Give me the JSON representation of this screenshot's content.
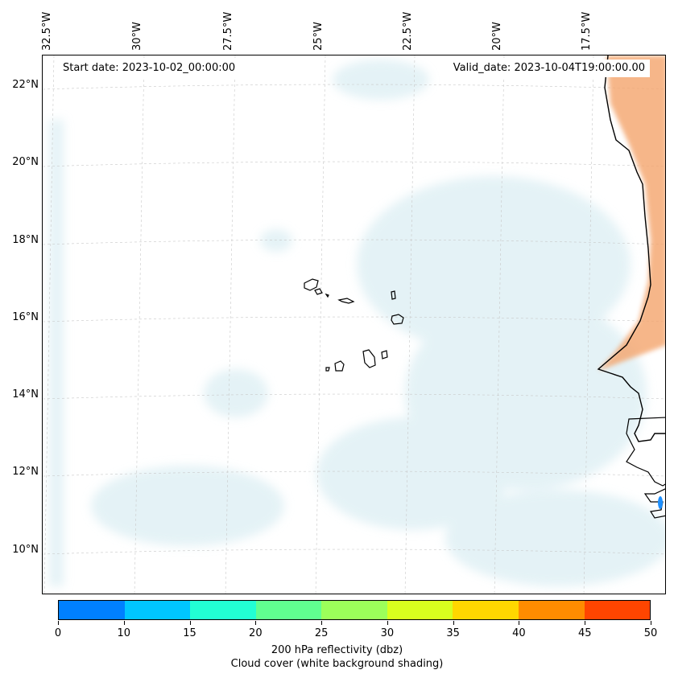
{
  "map": {
    "start_date": "Start date: 2023-10-02_00:00:00",
    "valid_date": "Valid_date: 2023-10-04T19:00:00.00",
    "lon_labels": [
      "32.5°W",
      "30°W",
      "27.5°W",
      "25°W",
      "22.5°W",
      "20°W",
      "17.5°W"
    ],
    "lat_labels": [
      "22°N",
      "20°N",
      "18°N",
      "16°N",
      "14°N",
      "12°N",
      "10°N"
    ],
    "colors": {
      "cloud": "#cfe8ef",
      "reflectivity_high": "#f4a46c",
      "gridline": "#c8c8c8",
      "coast": "#000000",
      "small_echo": "#1e90ff"
    }
  },
  "colorbar": {
    "colors": [
      "#0080ff",
      "#00c6ff",
      "#22ffd4",
      "#60ff90",
      "#9cff5a",
      "#d8ff1e",
      "#ffd700",
      "#ff8c00",
      "#ff4500"
    ],
    "ticks": [
      "0",
      "10",
      "15",
      "20",
      "25",
      "30",
      "35",
      "40",
      "45",
      "50"
    ],
    "label_line1": "200 hPa reflectivity (dbz)",
    "label_line2": "Cloud cover (white background shading)"
  }
}
